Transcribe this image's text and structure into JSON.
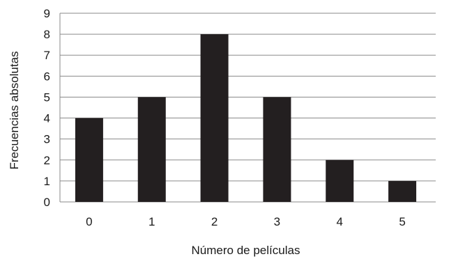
{
  "chart_data": {
    "type": "bar",
    "title": "",
    "xlabel": "Número de películas",
    "ylabel": "Frecuencias absolutas",
    "categories": [
      "0",
      "1",
      "2",
      "3",
      "4",
      "5"
    ],
    "values": [
      4,
      5,
      8,
      5,
      2,
      1
    ],
    "ylim": [
      0,
      9
    ],
    "yticks": [
      0,
      1,
      2,
      3,
      4,
      5,
      6,
      7,
      8,
      9
    ],
    "grid": true,
    "legend": "none",
    "bar_color": "#231f20",
    "grid_color": "#8a8a8a"
  }
}
